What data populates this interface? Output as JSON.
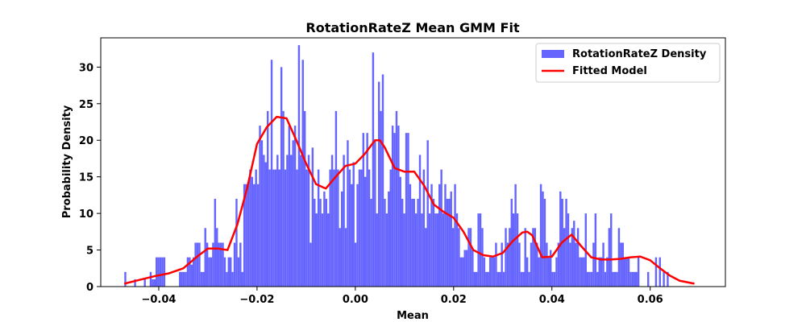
{
  "chart_data": {
    "type": "bar",
    "title": "RotationRateZ Mean GMM Fit",
    "xlabel": "Mean",
    "ylabel": "Probability Density",
    "xlim": [
      -0.0518,
      0.0753
    ],
    "ylim": [
      0,
      34
    ],
    "xticks": [
      -0.04,
      -0.02,
      0.0,
      0.02,
      0.04,
      0.06
    ],
    "xtick_labels": [
      "−0.04",
      "−0.02",
      "0.00",
      "0.02",
      "0.04",
      "0.06"
    ],
    "yticks": [
      0,
      5,
      10,
      15,
      20,
      25,
      30
    ],
    "ytick_labels": [
      "0",
      "5",
      "10",
      "15",
      "20",
      "25",
      "30"
    ],
    "legend_position": "top-right",
    "series": [
      {
        "name": "RotationRateZ Density",
        "kind": "histogram",
        "color": "#6666ff",
        "bin_start": -0.047,
        "bin_width": 0.000397,
        "values": [
          2,
          0,
          0,
          0,
          0,
          1,
          0,
          0,
          0,
          0,
          1,
          0,
          0,
          2,
          1,
          1,
          4,
          4,
          4,
          4,
          4,
          0,
          0,
          0,
          0,
          0,
          0,
          0,
          2,
          2,
          2,
          2,
          4,
          4,
          3,
          4,
          6,
          6,
          6,
          2,
          2,
          8,
          6,
          4,
          4,
          6,
          12,
          8,
          6,
          6,
          6,
          4,
          2,
          4,
          4,
          2,
          6,
          12,
          4,
          6,
          2,
          14,
          14,
          14,
          16,
          15,
          14,
          16,
          14,
          22,
          20,
          18,
          17,
          24,
          16,
          31,
          16,
          16,
          18,
          16,
          30,
          24,
          16,
          18,
          22,
          18,
          20,
          22,
          16,
          33,
          18,
          31,
          24,
          16,
          18,
          6,
          19,
          12,
          10,
          16,
          12,
          10,
          13,
          12,
          10,
          16,
          18,
          16,
          24,
          16,
          8,
          13,
          18,
          8,
          20,
          16,
          14,
          17,
          6,
          14,
          16,
          16,
          21,
          15,
          21,
          16,
          12,
          32,
          20,
          10,
          28,
          24,
          29,
          12,
          10,
          13,
          16,
          22,
          21,
          24,
          22,
          15,
          12,
          10,
          21,
          21,
          14,
          12,
          12,
          10,
          12,
          18,
          10,
          16,
          8,
          20,
          10,
          14,
          12,
          10,
          10,
          14,
          16,
          10,
          14,
          12,
          12,
          13,
          8,
          14,
          10,
          8,
          4,
          4,
          5,
          5,
          8,
          8,
          5,
          2,
          2,
          10,
          10,
          8,
          4,
          2,
          2,
          4,
          4,
          4,
          6,
          2,
          2,
          6,
          2,
          8,
          6,
          8,
          12,
          10,
          14,
          10,
          6,
          2,
          2,
          8,
          4,
          2,
          6,
          8,
          8,
          6,
          4,
          14,
          13,
          12,
          6,
          4,
          5,
          2,
          2,
          4,
          6,
          13,
          12,
          8,
          12,
          10,
          6,
          8,
          9,
          6,
          8,
          4,
          4,
          4,
          10,
          2,
          2,
          2,
          6,
          10,
          2,
          4,
          4,
          6,
          2,
          4,
          8,
          10,
          2,
          2,
          2,
          8,
          6,
          6,
          4,
          4,
          4,
          2,
          2,
          2,
          2,
          4,
          0,
          0,
          0,
          0,
          2,
          0,
          0,
          0,
          4,
          0,
          4,
          0,
          2,
          0,
          2
        ]
      },
      {
        "name": "Fitted Model",
        "kind": "line",
        "color": "#ff0000",
        "x": [
          -0.047,
          -0.044,
          -0.041,
          -0.038,
          -0.035,
          -0.032,
          -0.03,
          -0.028,
          -0.026,
          -0.024,
          -0.022,
          -0.02,
          -0.018,
          -0.016,
          -0.014,
          -0.012,
          -0.01,
          -0.008,
          -0.006,
          -0.004,
          -0.002,
          0.0,
          0.002,
          0.004,
          0.005,
          0.006,
          0.008,
          0.01,
          0.012,
          0.014,
          0.016,
          0.018,
          0.02,
          0.022,
          0.024,
          0.026,
          0.028,
          0.03,
          0.032,
          0.034,
          0.035,
          0.036,
          0.038,
          0.04,
          0.042,
          0.044,
          0.046,
          0.048,
          0.05,
          0.052,
          0.054,
          0.056,
          0.058,
          0.06,
          0.062,
          0.064,
          0.066,
          0.069
        ],
        "y": [
          0.4,
          0.9,
          1.4,
          1.8,
          2.5,
          4.2,
          5.2,
          5.2,
          5.0,
          8.5,
          13.5,
          19.5,
          21.8,
          23.2,
          23.0,
          20.0,
          16.8,
          14.0,
          13.4,
          15.0,
          16.5,
          16.8,
          18.2,
          20.0,
          20.0,
          19.0,
          16.2,
          15.7,
          15.7,
          13.8,
          11.2,
          10.2,
          9.4,
          7.5,
          5.0,
          4.3,
          4.1,
          4.6,
          6.2,
          7.4,
          7.5,
          7.0,
          4.0,
          4.1,
          6.0,
          7.1,
          5.5,
          4.0,
          3.7,
          3.7,
          3.8,
          4.0,
          4.1,
          3.6,
          2.5,
          1.5,
          0.8,
          0.4
        ]
      }
    ]
  }
}
